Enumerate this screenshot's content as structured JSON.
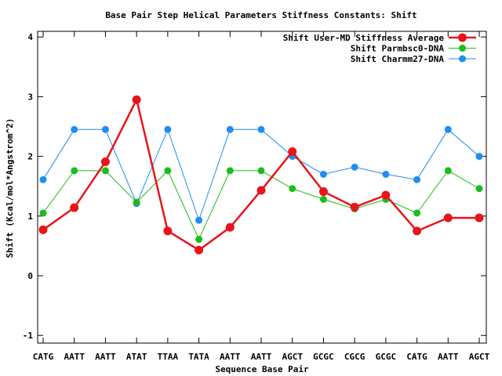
{
  "chart_data": {
    "type": "line",
    "title": "Base Pair Step Helical Parameters Stiffness Constants: Shift",
    "xlabel": "Sequence Base Pair",
    "ylabel": "Shift (Kcal/mol*Angstrom^2)",
    "ylim": [
      -1.15,
      4.1
    ],
    "yticks": [
      "-1",
      "0",
      "1",
      "2",
      "3",
      "4"
    ],
    "categories": [
      "CATG",
      "AATT",
      "AATT",
      "ATAT",
      "TTAA",
      "TATA",
      "AATT",
      "AATT",
      "AGCT",
      "GCGC",
      "CGCG",
      "GCGC",
      "CATG",
      "AATT",
      "AGCT"
    ],
    "grid": false,
    "legend_position": "top-right",
    "series": [
      {
        "name": "Shift User-MD Stiffness Average",
        "color": "#e8141b",
        "values": [
          0.77,
          1.14,
          1.91,
          2.95,
          0.75,
          0.43,
          0.81,
          1.43,
          2.08,
          1.41,
          1.15,
          1.35,
          0.75,
          0.97,
          0.97
        ]
      },
      {
        "name": "Shift Parmbsc0-DNA",
        "color": "#1cbc1c",
        "values": [
          1.05,
          1.76,
          1.76,
          1.23,
          1.76,
          0.61,
          1.76,
          1.76,
          1.46,
          1.28,
          1.12,
          1.28,
          1.05,
          1.76,
          1.46
        ]
      },
      {
        "name": "Shift Charmm27-DNA",
        "color": "#1f8ef0",
        "values": [
          1.61,
          2.45,
          2.45,
          1.21,
          2.45,
          0.93,
          2.45,
          2.45,
          2.0,
          1.7,
          1.82,
          1.7,
          1.61,
          2.45,
          2.0
        ]
      }
    ]
  }
}
